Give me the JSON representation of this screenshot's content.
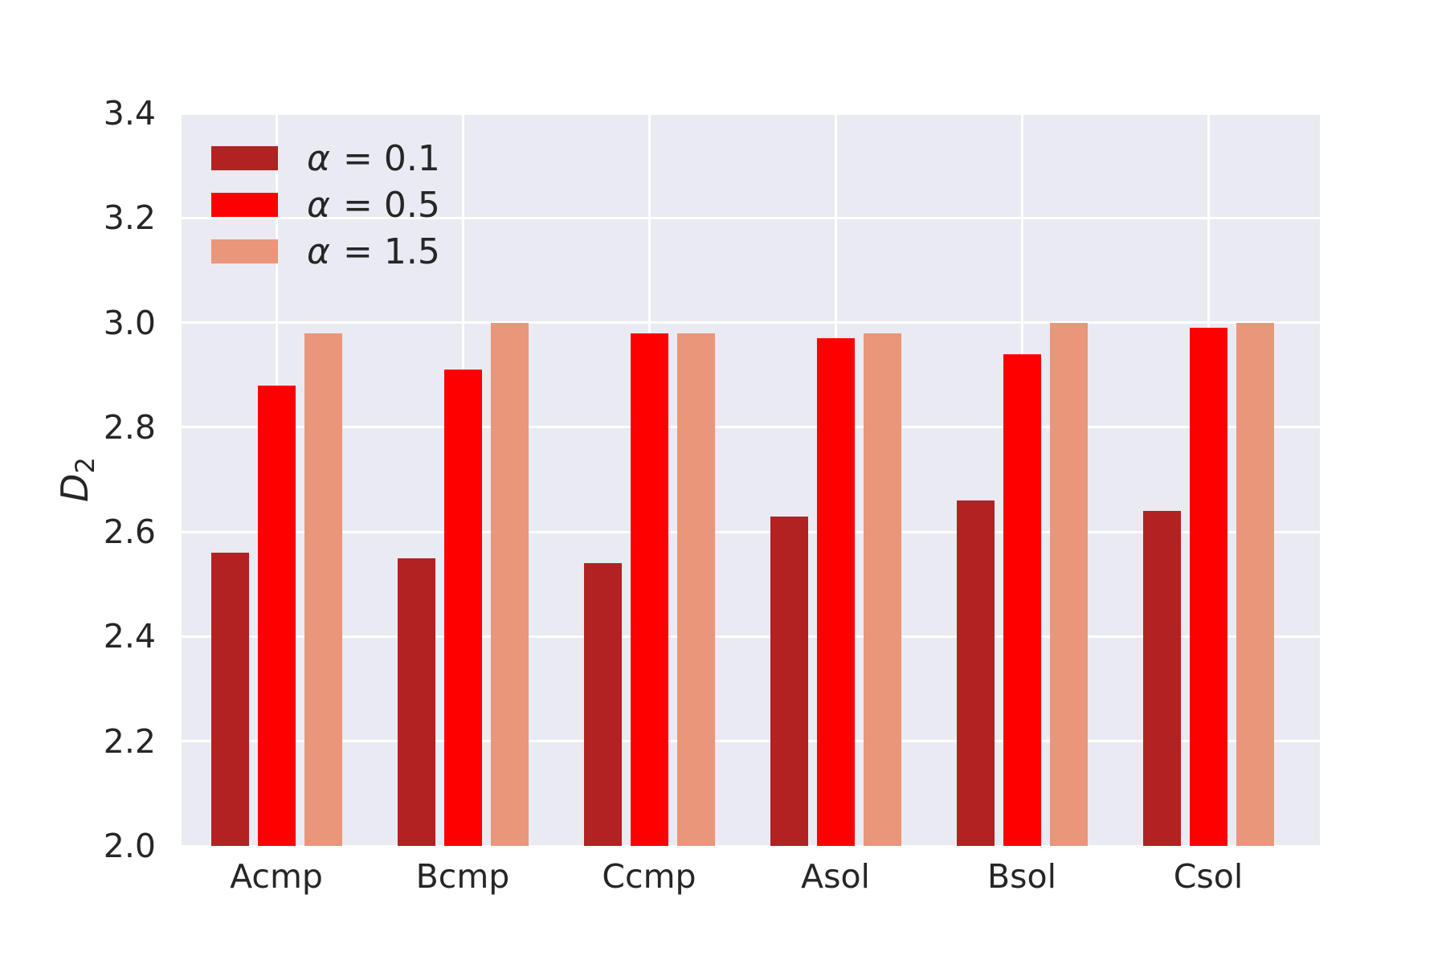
{
  "chart_data": {
    "type": "bar",
    "title": "",
    "categories": [
      "Acmp",
      "Bcmp",
      "Ccmp",
      "Asol",
      "Bsol",
      "Csol"
    ],
    "series": [
      {
        "name": "α = 0.1",
        "symbol": "α",
        "label_rest": " = 0.1",
        "color": "#B22222",
        "values": [
          2.56,
          2.55,
          2.54,
          2.63,
          2.66,
          2.64
        ]
      },
      {
        "name": "α = 0.5",
        "symbol": "α",
        "label_rest": " = 0.5",
        "color": "#FF0000",
        "values": [
          2.88,
          2.91,
          2.98,
          2.97,
          2.94,
          2.99
        ]
      },
      {
        "name": "α = 1.5",
        "symbol": "α",
        "label_rest": " = 1.5",
        "color": "#E9967A",
        "values": [
          2.98,
          3.0,
          2.98,
          2.98,
          3.0,
          3.0
        ]
      }
    ],
    "xlabel": "",
    "ylabel_base": "D",
    "ylabel_sub": "2",
    "ylim": [
      2.0,
      3.4
    ],
    "yticks": [
      2.0,
      2.2,
      2.4,
      2.6,
      2.8,
      3.0,
      3.2,
      3.4
    ],
    "ytick_labels": [
      "2.0",
      "2.2",
      "2.4",
      "2.6",
      "2.8",
      "3.0",
      "3.2",
      "3.4"
    ],
    "grid": true,
    "legend_position": "upper left",
    "colors": {
      "plot_background": "#EAEAF2",
      "gridline": "#FFFFFF",
      "text": "#262626",
      "figure_background": "#FFFFFF"
    }
  }
}
